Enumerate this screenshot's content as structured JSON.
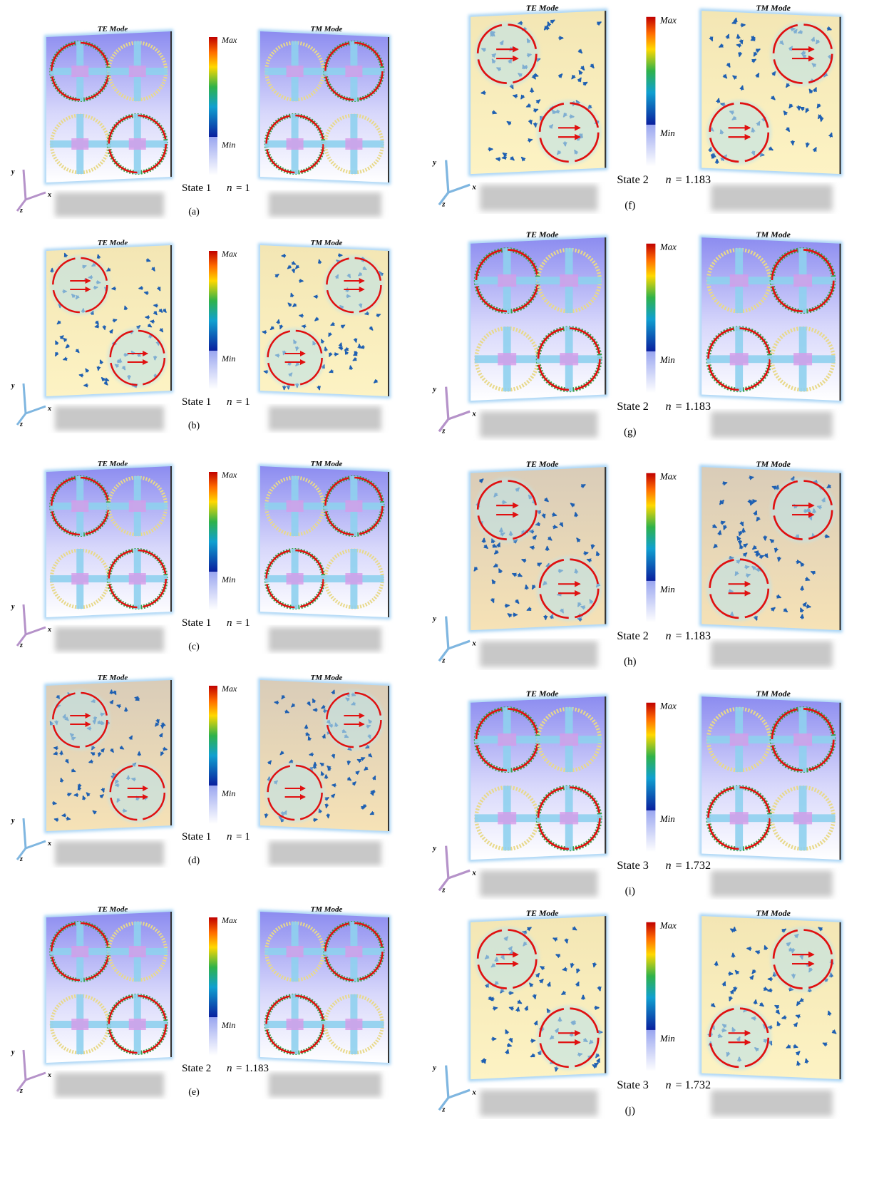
{
  "panels": [
    {
      "label": "(a)",
      "te_title": "TE Mode",
      "tm_title": "TM Mode",
      "max_label": "Max",
      "min_label": "Min",
      "state": "State 1",
      "n_symbol": "n",
      "n_value": "= 1",
      "axes": {
        "x": "x",
        "y": "y",
        "z": "z"
      }
    },
    {
      "label": "(b)",
      "te_title": "TE Mode",
      "tm_title": "TM Mode",
      "max_label": "Max",
      "min_label": "Min",
      "state": "State 1",
      "n_symbol": "n",
      "n_value": "= 1",
      "axes": {
        "x": "x",
        "y": "y",
        "z": "z"
      }
    },
    {
      "label": "(c)",
      "te_title": "TE Mode",
      "tm_title": "TM Mode",
      "max_label": "Max",
      "min_label": "Min",
      "state": "State 1",
      "n_symbol": "n",
      "n_value": "= 1",
      "axes": {
        "x": "x",
        "y": "y",
        "z": "z"
      }
    },
    {
      "label": "(d)",
      "te_title": "TE Mode",
      "tm_title": "TM Mode",
      "max_label": "Max",
      "min_label": "Min",
      "state": "State 1",
      "n_symbol": "n",
      "n_value": "= 1",
      "axes": {
        "x": "x",
        "y": "y",
        "z": "z"
      }
    },
    {
      "label": "(e)",
      "te_title": "TE Mode",
      "tm_title": "TM Mode",
      "max_label": "Max",
      "min_label": "Min",
      "state": "State 2",
      "n_symbol": "n",
      "n_value": "= 1.183",
      "axes": {
        "x": "x",
        "y": "y",
        "z": "z"
      }
    },
    {
      "label": "(f)",
      "te_title": "TE Mode",
      "tm_title": "TM Mode",
      "max_label": "Max",
      "min_label": "Min",
      "state": "State 2",
      "n_symbol": "n",
      "n_value": "= 1.183",
      "axes": {
        "x": "x",
        "y": "y",
        "z": "z"
      }
    },
    {
      "label": "(g)",
      "te_title": "TE Mode",
      "tm_title": "TM Mode",
      "max_label": "Max",
      "min_label": "Min",
      "state": "State 2",
      "n_symbol": "n",
      "n_value": "= 1.183",
      "axes": {
        "x": "x",
        "y": "y",
        "z": "z"
      }
    },
    {
      "label": "(h)",
      "te_title": "TE Mode",
      "tm_title": "TM Mode",
      "max_label": "Max",
      "min_label": "Min",
      "state": "State 2",
      "n_symbol": "n",
      "n_value": "= 1.183",
      "axes": {
        "x": "x",
        "y": "y",
        "z": "z"
      }
    },
    {
      "label": "(i)",
      "te_title": "TE Mode",
      "tm_title": "TM Mode",
      "max_label": "Max",
      "min_label": "Min",
      "state": "State 3",
      "n_symbol": "n",
      "n_value": "= 1.732",
      "axes": {
        "x": "x",
        "y": "y",
        "z": "z"
      }
    },
    {
      "label": "(j)",
      "te_title": "TE Mode",
      "tm_title": "TM Mode",
      "max_label": "Max",
      "min_label": "Min",
      "state": "State 3",
      "n_symbol": "n",
      "n_value": "= 1.732",
      "axes": {
        "x": "x",
        "y": "y",
        "z": "z"
      }
    }
  ]
}
